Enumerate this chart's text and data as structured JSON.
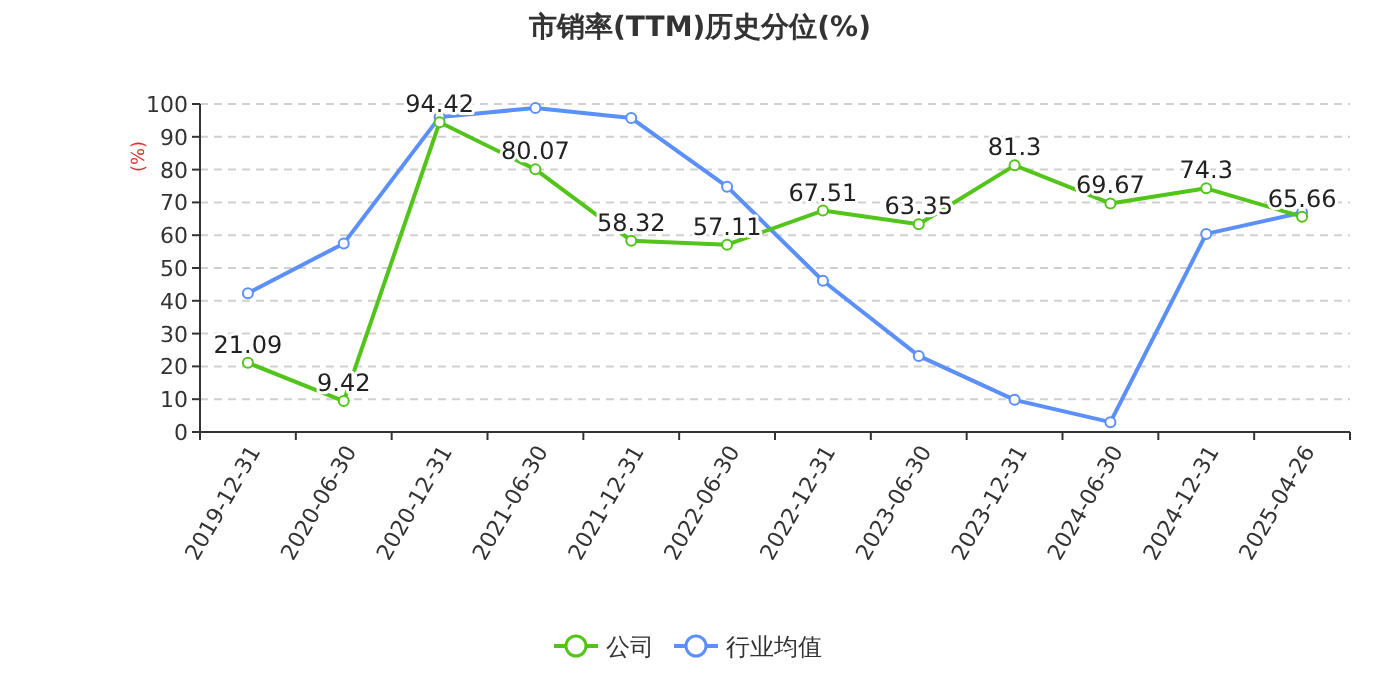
{
  "chart_data": {
    "type": "line",
    "title": "市销率(TTM)历史分位(%)",
    "ylabel": "(%)",
    "categories": [
      "2019-12-31",
      "2020-06-30",
      "2020-12-31",
      "2021-06-30",
      "2021-12-31",
      "2022-06-30",
      "2022-12-31",
      "2023-06-30",
      "2023-12-31",
      "2024-06-30",
      "2024-12-31",
      "2025-04-26"
    ],
    "series": [
      {
        "name": "公司",
        "color": "#52c41a",
        "values": [
          21.09,
          9.42,
          94.42,
          80.07,
          58.32,
          57.11,
          67.51,
          63.35,
          81.3,
          69.67,
          74.3,
          65.66
        ],
        "value_labels": [
          "21.09",
          "9.42",
          "94.42",
          "80.07",
          "58.32",
          "57.11",
          "67.51",
          "63.35",
          "81.3",
          "69.67",
          "74.3",
          "65.66"
        ]
      },
      {
        "name": "行业均值",
        "color": "#5b8ff9",
        "values": [
          42.3,
          57.5,
          96,
          98.8,
          95.7,
          74.8,
          46.1,
          23.2,
          9.8,
          3,
          60.4,
          66.9
        ]
      }
    ],
    "ylim": [
      0,
      100
    ],
    "yticks": [
      0,
      10,
      20,
      30,
      40,
      50,
      60,
      70,
      80,
      90,
      100
    ],
    "grid": "y",
    "legend": "bottom",
    "marker": "circle",
    "line_style": "solid"
  }
}
